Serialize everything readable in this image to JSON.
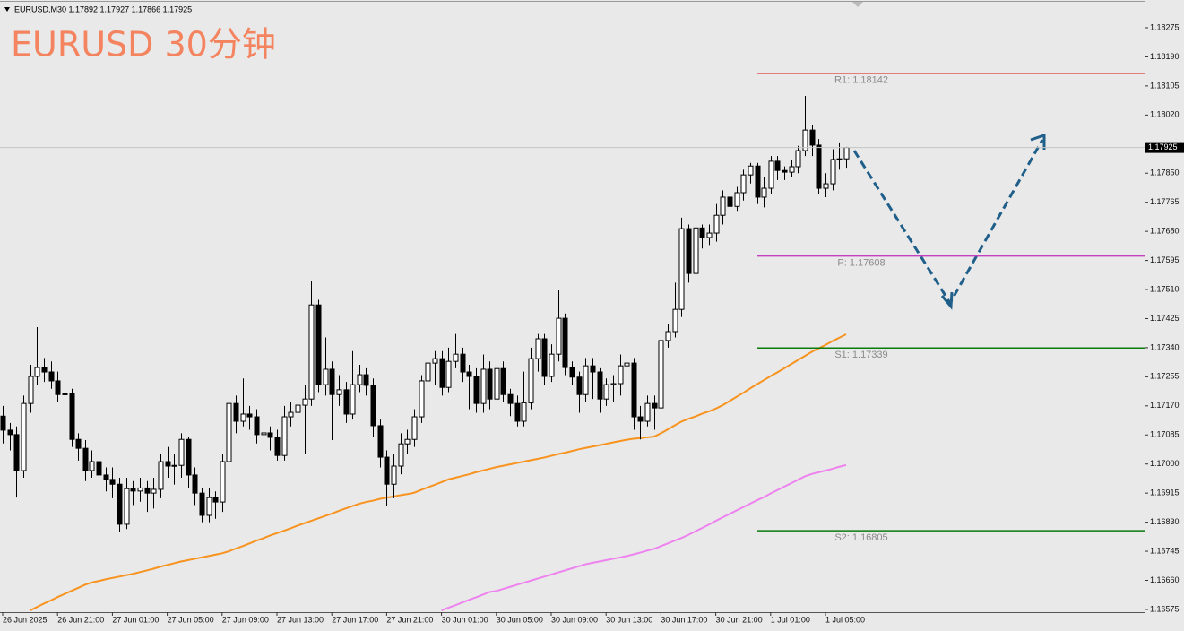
{
  "chart_data": {
    "type": "candlestick",
    "header": "EURUSD,M30  1.17892 1.17927 1.17866 1.17925",
    "title": "EURUSD 30分钟",
    "categories": [
      "26 Jun 2025",
      null,
      null,
      null,
      null,
      null,
      null,
      null,
      "26 Jun 21:00",
      null,
      null,
      null,
      null,
      null,
      null,
      null,
      "27 Jun 01:00",
      null,
      null,
      null,
      null,
      null,
      null,
      null,
      "27 Jun 05:00",
      null,
      null,
      null,
      null,
      null,
      null,
      null,
      "27 Jun 09:00",
      null,
      null,
      null,
      null,
      null,
      null,
      null,
      "27 Jun 13:00",
      null,
      null,
      null,
      null,
      null,
      null,
      null,
      "27 Jun 17:00",
      null,
      null,
      null,
      null,
      null,
      null,
      null,
      "27 Jun 21:00",
      null,
      null,
      null,
      null,
      null,
      null,
      null,
      "30 Jun 01:00",
      null,
      null,
      null,
      null,
      null,
      null,
      null,
      "30 Jun 05:00",
      null,
      null,
      null,
      null,
      null,
      null,
      null,
      "30 Jun 09:00",
      null,
      null,
      null,
      null,
      null,
      null,
      null,
      "30 Jun 13:00",
      null,
      null,
      null,
      null,
      null,
      null,
      null,
      "30 Jun 17:00",
      null,
      null,
      null,
      null,
      null,
      null,
      null,
      "30 Jun 21:00",
      null,
      null,
      null,
      null,
      null,
      null,
      null,
      "1 Jul 01:00",
      null,
      null,
      null,
      null,
      null,
      null,
      null,
      "1 Jul 05:00",
      null,
      null,
      null
    ],
    "open": [
      1.1714,
      1.17099,
      1.17086,
      1.16981,
      1.17177,
      1.17256,
      1.17282,
      1.17269,
      1.17243,
      1.17203,
      1.17205,
      1.17072,
      1.17046,
      1.16981,
      1.17007,
      1.16968,
      1.16955,
      1.16941,
      1.16824,
      1.16928,
      1.16921,
      1.1693,
      1.16915,
      1.16926,
      1.17007,
      1.16994,
      1.16996,
      1.17072,
      1.16968,
      1.16915,
      1.1685,
      1.16902,
      1.16889,
      1.17007,
      1.17177,
      1.17125,
      1.17146,
      1.17138,
      1.17086,
      1.17091,
      1.17078,
      1.17025,
      1.17138,
      1.17151,
      1.17172,
      1.1719,
      1.17465,
      1.17232,
      1.17277,
      1.17203,
      1.17217,
      1.17146,
      1.17232,
      1.17261,
      1.1723,
      1.17112,
      1.1702,
      1.16941,
      1.16994,
      1.17059,
      1.17072,
      1.17138,
      1.17243,
      1.17295,
      1.17308,
      1.17224,
      1.173,
      1.17321,
      1.17269,
      1.17256,
      1.17177,
      1.17277,
      1.1719,
      1.17279,
      1.17203,
      1.17177,
      1.17125,
      1.17179,
      1.17308,
      1.17366,
      1.17256,
      1.17321,
      1.17426,
      1.17282,
      1.17254,
      1.17203,
      1.17287,
      1.17269,
      1.1719,
      1.17232,
      1.17235,
      1.17287,
      1.17295,
      1.17138,
      1.17125,
      1.17177,
      1.17164,
      1.17361,
      1.17387,
      1.17452,
      1.17688,
      1.17557,
      1.1769,
      1.17662,
      1.17675,
      1.17727,
      1.1778,
      1.17753,
      1.17793,
      1.17845,
      1.17871,
      1.1778,
      1.17806,
      1.17885,
      1.17858,
      1.17853,
      1.17869,
      1.17916,
      1.17976,
      1.17932,
      1.17806,
      1.17819,
      1.1789,
      1.17892
    ],
    "high": [
      1.1717,
      1.1712,
      1.1711,
      1.172,
      1.1729,
      1.174,
      1.1731,
      1.173,
      1.1727,
      1.1724,
      1.1722,
      1.1709,
      1.1707,
      1.1704,
      1.1703,
      1.1699,
      1.1699,
      1.1696,
      1.1696,
      1.1695,
      1.1696,
      1.1695,
      1.1696,
      1.1703,
      1.1705,
      1.1703,
      1.1709,
      1.1708,
      1.1699,
      1.1693,
      1.1693,
      1.1692,
      1.1703,
      1.1723,
      1.172,
      1.1725,
      1.1717,
      1.1716,
      1.1714,
      1.1711,
      1.171,
      1.1717,
      1.1718,
      1.1722,
      1.1723,
      1.17536,
      1.1748,
      1.1737,
      1.173,
      1.1726,
      1.1724,
      1.1733,
      1.1729,
      1.1728,
      1.1725,
      1.1713,
      1.1704,
      1.1703,
      1.1709,
      1.171,
      1.1716,
      1.1726,
      1.1731,
      1.1733,
      1.1733,
      1.1734,
      1.1738,
      1.1734,
      1.1729,
      1.1728,
      1.1732,
      1.173,
      1.1736,
      1.173,
      1.1722,
      1.172,
      1.1727,
      1.1734,
      1.1738,
      1.1738,
      1.1735,
      1.1751,
      1.1744,
      1.173,
      1.1727,
      1.1731,
      1.1731,
      1.1728,
      1.1725,
      1.1726,
      1.1732,
      1.1731,
      1.1731,
      1.1717,
      1.172,
      1.172,
      1.1738,
      1.1741,
      1.1753,
      1.1772,
      1.177,
      1.1771,
      1.177,
      1.177,
      1.1776,
      1.178,
      1.178,
      1.1781,
      1.1786,
      1.1788,
      1.1788,
      1.1784,
      1.179,
      1.179,
      1.1787,
      1.1789,
      1.1793,
      1.18076,
      1.1799,
      1.1795,
      1.1785,
      1.1792,
      1.1794,
      1.17927
    ],
    "low": [
      1.1706,
      1.1704,
      1.16902,
      1.1696,
      1.1715,
      1.1723,
      1.1724,
      1.1722,
      1.1718,
      1.1716,
      1.1705,
      1.1701,
      1.1695,
      1.1696,
      1.1693,
      1.1692,
      1.169,
      1.168,
      1.1681,
      1.1688,
      1.1689,
      1.1686,
      1.1687,
      1.169,
      1.1696,
      1.1694,
      1.1696,
      1.1693,
      1.1688,
      1.1683,
      1.1683,
      1.1684,
      1.1686,
      1.1699,
      1.1709,
      1.1711,
      1.171,
      1.1706,
      1.1706,
      1.1704,
      1.1701,
      1.1701,
      1.1711,
      1.1713,
      1.1703,
      1.1717,
      1.1721,
      1.172,
      1.1707,
      1.1717,
      1.1712,
      1.1713,
      1.1721,
      1.172,
      1.1708,
      1.1699,
      1.16876,
      1.169,
      1.1697,
      1.1703,
      1.1705,
      1.1712,
      1.1722,
      1.1723,
      1.172,
      1.1721,
      1.1728,
      1.1724,
      1.1716,
      1.1715,
      1.1715,
      1.1716,
      1.1717,
      1.1718,
      1.1714,
      1.1711,
      1.1711,
      1.1716,
      1.1727,
      1.1723,
      1.1724,
      1.173,
      1.1726,
      1.1723,
      1.1715,
      1.1718,
      1.1719,
      1.1715,
      1.1717,
      1.1718,
      1.172,
      1.1723,
      1.171,
      1.17072,
      1.1711,
      1.171,
      1.1715,
      1.1734,
      1.1737,
      1.1743,
      1.1753,
      1.1754,
      1.1763,
      1.1764,
      1.1765,
      1.177,
      1.1772,
      1.1774,
      1.1777,
      1.1782,
      1.1776,
      1.1775,
      1.1779,
      1.1783,
      1.1783,
      1.1784,
      1.1785,
      1.179,
      1.179,
      1.1779,
      1.1778,
      1.178,
      1.1786,
      1.17866
    ],
    "close": [
      1.17099,
      1.17086,
      1.16981,
      1.17177,
      1.17256,
      1.17282,
      1.17269,
      1.17243,
      1.17203,
      1.17205,
      1.17072,
      1.17046,
      1.16981,
      1.17007,
      1.16968,
      1.16955,
      1.16941,
      1.16824,
      1.16928,
      1.16921,
      1.1693,
      1.16915,
      1.16926,
      1.17007,
      1.16994,
      1.16996,
      1.17072,
      1.16968,
      1.16915,
      1.1685,
      1.16902,
      1.16889,
      1.17007,
      1.17177,
      1.17125,
      1.17146,
      1.17138,
      1.17086,
      1.17091,
      1.17078,
      1.17025,
      1.17138,
      1.17151,
      1.17172,
      1.1719,
      1.17465,
      1.17232,
      1.17277,
      1.17203,
      1.17217,
      1.17146,
      1.17232,
      1.17261,
      1.1723,
      1.17112,
      1.1702,
      1.16941,
      1.16994,
      1.17059,
      1.17072,
      1.17138,
      1.17243,
      1.17295,
      1.17308,
      1.17224,
      1.173,
      1.17321,
      1.17269,
      1.17256,
      1.17177,
      1.17277,
      1.1719,
      1.17279,
      1.17203,
      1.17177,
      1.17125,
      1.17179,
      1.17308,
      1.17366,
      1.17256,
      1.17321,
      1.17426,
      1.17282,
      1.17254,
      1.17203,
      1.17287,
      1.17269,
      1.1719,
      1.17232,
      1.17235,
      1.17287,
      1.17295,
      1.17138,
      1.17125,
      1.17177,
      1.17164,
      1.17361,
      1.17387,
      1.17452,
      1.17688,
      1.17557,
      1.1769,
      1.17662,
      1.17675,
      1.17727,
      1.1778,
      1.17753,
      1.17793,
      1.17845,
      1.17871,
      1.1778,
      1.17806,
      1.17885,
      1.17858,
      1.17853,
      1.17869,
      1.17916,
      1.17976,
      1.17932,
      1.17806,
      1.17819,
      1.1789,
      1.17892,
      1.17925
    ],
    "up_color": "#ffffff",
    "down_color": "#000000",
    "wick_color": "#000000",
    "lines": [
      {
        "color": "#f7931e",
        "values": [
          null,
          null,
          null,
          null,
          1.16572,
          1.16582,
          1.16592,
          1.16601,
          1.16611,
          1.1662,
          1.16629,
          1.16638,
          1.16647,
          1.16654,
          1.16658,
          1.16663,
          1.16667,
          1.16671,
          1.16675,
          1.16679,
          1.16684,
          1.16689,
          1.16694,
          1.167,
          1.16705,
          1.1671,
          1.16715,
          1.16719,
          1.16723,
          1.16727,
          1.16731,
          1.16735,
          1.16739,
          1.16745,
          1.16753,
          1.1676,
          1.16768,
          1.16776,
          1.16783,
          1.16791,
          1.16798,
          1.16805,
          1.16812,
          1.1682,
          1.16827,
          1.16834,
          1.16841,
          1.16848,
          1.16855,
          1.16863,
          1.1687,
          1.16877,
          1.16884,
          1.16889,
          1.16893,
          1.16898,
          1.16902,
          1.16905,
          1.16909,
          1.16912,
          1.16916,
          1.16924,
          1.16932,
          1.16939,
          1.16947,
          1.16955,
          1.1696,
          1.16965,
          1.1697,
          1.16976,
          1.16981,
          1.16986,
          1.16991,
          1.16995,
          1.16999,
          1.17003,
          1.17007,
          1.17011,
          1.17015,
          1.17019,
          1.17024,
          1.17029,
          1.17033,
          1.17038,
          1.17043,
          1.17047,
          1.17051,
          1.17055,
          1.17059,
          1.17063,
          1.17067,
          1.17071,
          1.17074,
          1.17076,
          1.17078,
          1.1708,
          1.1709,
          1.17101,
          1.17113,
          1.17124,
          1.17132,
          1.17139,
          1.17147,
          1.17154,
          1.17162,
          1.17172,
          1.17184,
          1.17196,
          1.17208,
          1.17221,
          1.17233,
          1.17245,
          1.17257,
          1.17268,
          1.1728,
          1.17292,
          1.17304,
          1.17316,
          1.17328,
          1.17338,
          1.17348,
          1.17359,
          1.17369,
          1.17379
        ]
      },
      {
        "color": "#ee82ee",
        "values": [
          null,
          null,
          null,
          null,
          null,
          null,
          null,
          null,
          null,
          null,
          null,
          null,
          null,
          null,
          null,
          null,
          null,
          null,
          null,
          null,
          null,
          null,
          null,
          null,
          null,
          null,
          null,
          null,
          null,
          null,
          null,
          null,
          null,
          null,
          null,
          null,
          null,
          null,
          null,
          null,
          null,
          null,
          null,
          null,
          null,
          null,
          null,
          null,
          null,
          null,
          null,
          null,
          null,
          null,
          null,
          null,
          null,
          null,
          null,
          null,
          null,
          null,
          null,
          null,
          1.16572,
          1.1658,
          1.16587,
          1.16595,
          1.16603,
          1.1661,
          1.16618,
          1.16626,
          1.16629,
          1.16635,
          1.16641,
          1.16647,
          1.16653,
          1.16659,
          1.16665,
          1.16671,
          1.16677,
          1.16683,
          1.16689,
          1.16695,
          1.16701,
          1.16707,
          1.16711,
          1.16715,
          1.16719,
          1.16723,
          1.16727,
          1.16731,
          1.16736,
          1.16741,
          1.16747,
          1.16752,
          1.1676,
          1.16768,
          1.16776,
          1.16784,
          1.16793,
          1.16803,
          1.16813,
          1.16823,
          1.16834,
          1.16844,
          1.16854,
          1.16864,
          1.16874,
          1.16884,
          1.16894,
          1.16903,
          1.16914,
          1.16924,
          1.16934,
          1.16944,
          1.16954,
          1.16964,
          1.16971,
          1.16976,
          1.16981,
          1.16986,
          1.16992,
          1.16997
        ]
      }
    ],
    "levels": {
      "values": [
        1.18142,
        1.17608,
        1.17339,
        1.16805
      ],
      "value_labels": [
        "R1: 1.18142",
        "P: 1.17608",
        "S1: 1.17339",
        "S2: 1.16805"
      ],
      "colors": [
        "#e01010",
        "#c23ec2",
        "#0a7a0a",
        "#0a7a0a"
      ]
    },
    "last_price": 1.17925,
    "ylim": [
      1.16567,
      1.18351
    ],
    "yticks": [
      1.18275,
      {
        "value": 1.1819,
        "label": "1.18190"
      },
      1.18105,
      {
        "value": 1.1802,
        "label": "1.18020"
      },
      {
        "value": 1.1785,
        "label": "1.17850"
      },
      1.17765,
      {
        "value": 1.1768,
        "label": "1.17680"
      },
      1.17595,
      {
        "value": 1.1751,
        "label": "1.17510"
      },
      1.17425,
      {
        "value": 1.1734,
        "label": "1.17340"
      },
      1.17255,
      {
        "value": 1.1717,
        "label": "1.17170"
      },
      1.17085,
      {
        "value": 1.17,
        "label": "1.17000"
      },
      1.16915,
      {
        "value": 1.1683,
        "label": "1.16830"
      },
      1.16745,
      {
        "value": 1.1666,
        "label": "1.16660"
      },
      1.16575
    ],
    "grid": false
  }
}
